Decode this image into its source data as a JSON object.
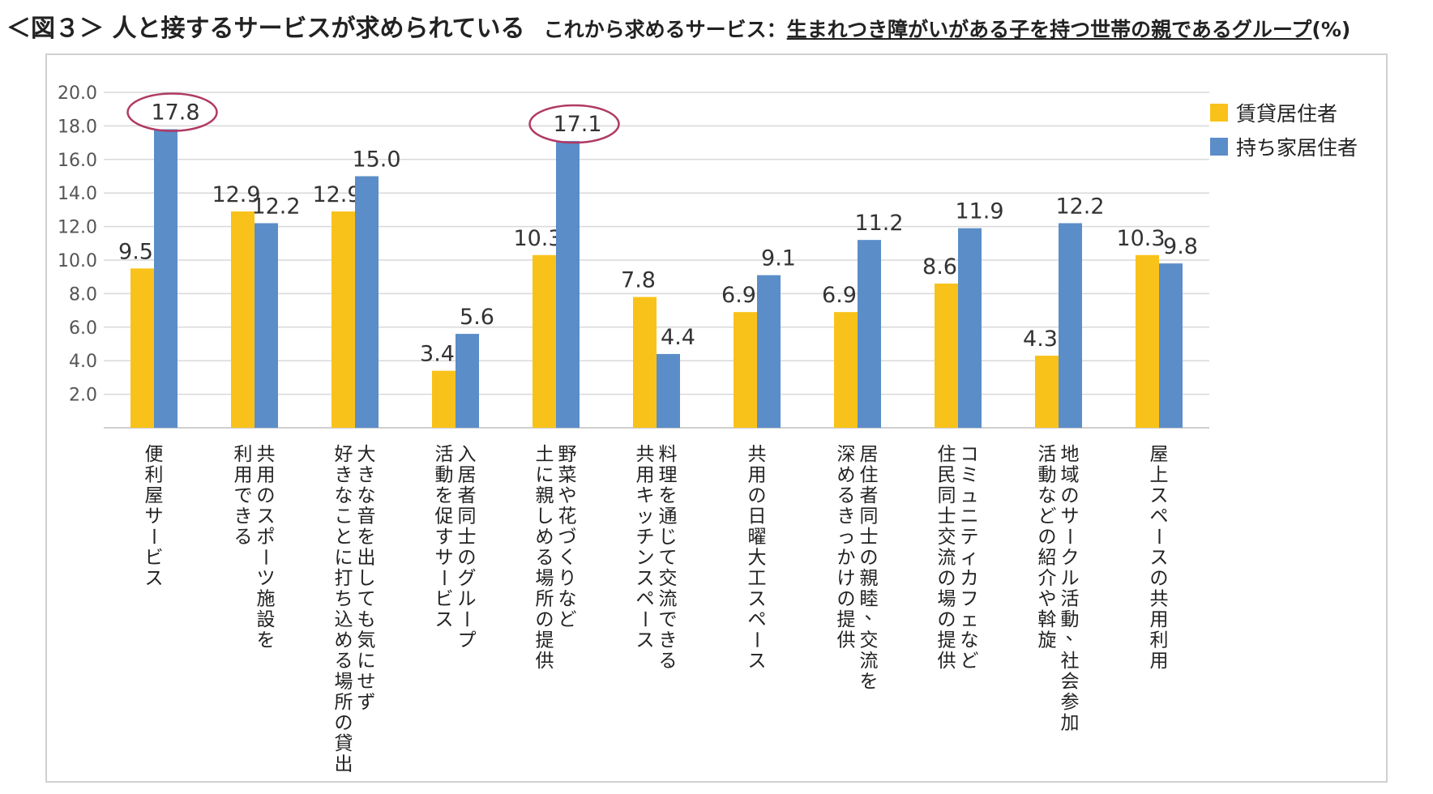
{
  "title": {
    "main": "＜図３＞ 人と接するサービスが求められている",
    "sub_prefix": "これから求めるサービス：",
    "sub_underlined": "生まれつき障がいがある子を持つ世帯の親であるグループ",
    "sub_suffix": "(%)"
  },
  "colors": {
    "rent": "#F9C21A",
    "own": "#5B8DC8",
    "grid": "#D9D9D9",
    "highlight": "#B03A64"
  },
  "chart_data": {
    "type": "bar",
    "title": "これから求めるサービス：生まれつき障がいがある子を持つ世帯の親であるグループ",
    "ylabel": "(%)",
    "ylim": [
      0,
      20
    ],
    "yticks": [
      "20.0",
      "18.0",
      "16.0",
      "14.0",
      "12.0",
      "10.0",
      "8.0",
      "6.0",
      "4.0",
      "2.0"
    ],
    "legend_position": "top-right",
    "categories": [
      [
        "便利屋サービス"
      ],
      [
        "共用のスポーツ施設を",
        "利用できる"
      ],
      [
        "大きな音を出しても気にせず",
        "好きなことに打ち込める場所の貸出"
      ],
      [
        "入居者同士のグループ",
        "活動を促すサービス"
      ],
      [
        "野菜や花づくりなど",
        "土に親しめる場所の提供"
      ],
      [
        "料理を通じて交流できる",
        "共用キッチンスペース"
      ],
      [
        "共用の日曜大工スペース"
      ],
      [
        "居住者同士の親睦、交流を",
        "深めるきっかけの提供"
      ],
      [
        "コミュニティカフェなど",
        "住民同士交流の場の提供"
      ],
      [
        "地域のサークル活動、社会参加",
        "活動などの紹介や斡旋"
      ],
      [
        "屋上スペースの共用利用"
      ]
    ],
    "series": [
      {
        "name": "賃貸居住者",
        "values": [
          9.5,
          12.9,
          12.9,
          3.4,
          10.3,
          7.8,
          6.9,
          6.9,
          8.6,
          4.3,
          10.3
        ]
      },
      {
        "name": "持ち家居住者",
        "values": [
          17.8,
          12.2,
          15.0,
          5.6,
          17.1,
          4.4,
          9.1,
          11.2,
          11.9,
          12.2,
          9.8
        ]
      }
    ],
    "annotations": [
      {
        "series": 1,
        "category": 0,
        "type": "ellipse"
      },
      {
        "series": 1,
        "category": 4,
        "type": "ellipse"
      }
    ]
  }
}
